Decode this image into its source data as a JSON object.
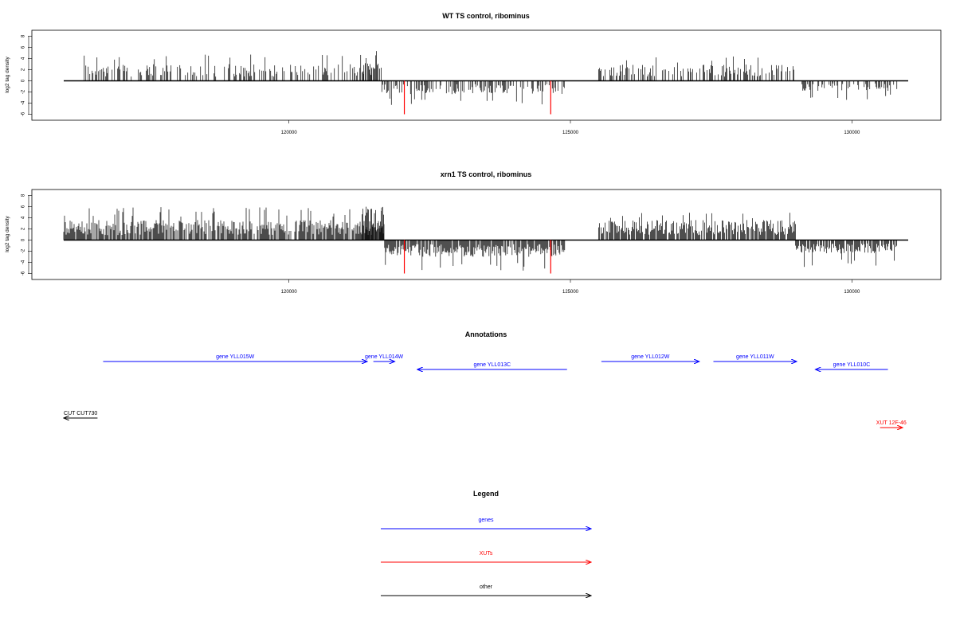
{
  "colors": {
    "gene": "#0000ff",
    "xut": "#ff0000",
    "other": "#000000",
    "bars": "#000000"
  },
  "chart_data": [
    {
      "type": "bar",
      "title": "WT TS control, ribominus",
      "ylabel": "log2 tag density",
      "xlim": [
        116000,
        131500
      ],
      "ylim": [
        -6.5,
        8.5
      ],
      "x_ticks": [
        "120000",
        "125000",
        "130000"
      ],
      "y_ticks": [
        "-6",
        "-4",
        "-2",
        "0",
        "2",
        "4",
        "6",
        "8"
      ],
      "grid": false,
      "series": [
        {
          "strand": "plus",
          "segments": [
            {
              "x": [
                116350,
                121650
              ],
              "approx_height": 2.5,
              "max_height": 5
            },
            {
              "x": [
                121300,
                121650
              ],
              "approx_height": 4,
              "max_height": 6.2
            },
            {
              "x": [
                125500,
                129000
              ],
              "approx_height": 2.5,
              "max_height": 4.5
            }
          ]
        },
        {
          "strand": "minus",
          "segments": [
            {
              "x": [
                121650,
                124900
              ],
              "approx_height": -2,
              "max_height": -4.5
            },
            {
              "x": [
                129100,
                130800
              ],
              "approx_height": -1.5,
              "max_height": -3.5
            }
          ]
        },
        {
          "strand": "marked",
          "color": "xut",
          "x": [
            122050,
            124650
          ],
          "values": [
            -6,
            -6
          ]
        }
      ]
    },
    {
      "type": "bar",
      "title": "xrn1 TS control, ribominus",
      "ylabel": "log2 tag density",
      "xlim": [
        116000,
        131500
      ],
      "ylim": [
        -6.5,
        8.5
      ],
      "x_ticks": [
        "120000",
        "125000",
        "130000"
      ],
      "y_ticks": [
        "-6",
        "-4",
        "-2",
        "0",
        "2",
        "4",
        "6",
        "8"
      ],
      "grid": false,
      "series": [
        {
          "strand": "plus",
          "segments": [
            {
              "x": [
                116000,
                121700
              ],
              "approx_height": 3,
              "max_height": 6
            },
            {
              "x": [
                121300,
                121700
              ],
              "approx_height": 5,
              "max_height": 7.8
            },
            {
              "x": [
                125500,
                129000
              ],
              "approx_height": 3,
              "max_height": 5
            }
          ]
        },
        {
          "strand": "minus",
          "segments": [
            {
              "x": [
                121700,
                124900
              ],
              "approx_height": -2.5,
              "max_height": -5.5
            },
            {
              "x": [
                129000,
                130800
              ],
              "approx_height": -2,
              "max_height": -5
            }
          ]
        },
        {
          "strand": "marked",
          "color": "xut",
          "x": [
            122050,
            124650
          ],
          "values": [
            -6,
            -6
          ]
        }
      ]
    }
  ],
  "annotations": {
    "title": "Annotations",
    "items": [
      {
        "label": "gene YLL015W",
        "color": "gene",
        "start": 116700,
        "end": 121390,
        "direction": "right",
        "row": 1
      },
      {
        "label": "gene YLL014W",
        "color": "gene",
        "start": 121500,
        "end": 121880,
        "direction": "right",
        "row": 1
      },
      {
        "label": "gene YLL013C",
        "color": "gene",
        "start": 122280,
        "end": 124940,
        "direction": "left",
        "row": 2
      },
      {
        "label": "gene YLL012W",
        "color": "gene",
        "start": 125550,
        "end": 127290,
        "direction": "right",
        "row": 1
      },
      {
        "label": "gene YLL011W",
        "color": "gene",
        "start": 127540,
        "end": 129020,
        "direction": "right",
        "row": 1
      },
      {
        "label": "gene YLL010C",
        "color": "gene",
        "start": 129350,
        "end": 130640,
        "direction": "left",
        "row": 2
      },
      {
        "label": "CUT CUT730",
        "color": "other",
        "start": 116000,
        "end": 116600,
        "direction": "left",
        "row": 3
      },
      {
        "label": "XUT 12F-46",
        "color": "xut",
        "start": 130500,
        "end": 130900,
        "direction": "right",
        "row": 4
      }
    ]
  },
  "legend": {
    "title": "Legend",
    "items": [
      {
        "label": "genes",
        "color": "gene"
      },
      {
        "label": "XUTs",
        "color": "xut"
      },
      {
        "label": "other",
        "color": "other"
      }
    ]
  }
}
